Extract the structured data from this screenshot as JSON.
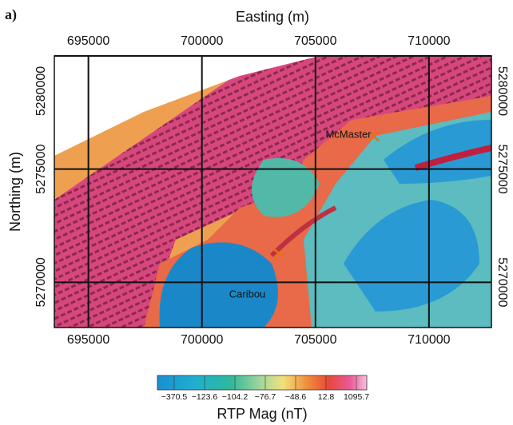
{
  "panel_label": "a)",
  "map": {
    "x_label": "Easting (m)",
    "y_label": "Northing (m)",
    "xlim": [
      693500,
      712750
    ],
    "ylim": [
      5268000,
      5280000
    ],
    "xticks": [
      695000,
      700000,
      705000,
      710000
    ],
    "yticks": [
      5270000,
      5275000,
      5280000
    ],
    "grid": true,
    "places": [
      {
        "name": "McMaster",
        "x": 706450,
        "y": 5276500
      },
      {
        "name": "Caribou",
        "x": 702000,
        "y": 5269450
      }
    ]
  },
  "colorbar": {
    "label": "RTP Mag (nT)",
    "ticks": [
      {
        "value": -370.5,
        "label": "−370.5"
      },
      {
        "value": -123.6,
        "label": "−123.6"
      },
      {
        "value": -104.2,
        "label": "−104.2"
      },
      {
        "value": -76.7,
        "label": "−76.7"
      },
      {
        "value": -48.6,
        "label": "−48.6"
      },
      {
        "value": 12.8,
        "label": "12.8"
      },
      {
        "value": 1095.7,
        "label": "1095.7"
      }
    ]
  }
}
